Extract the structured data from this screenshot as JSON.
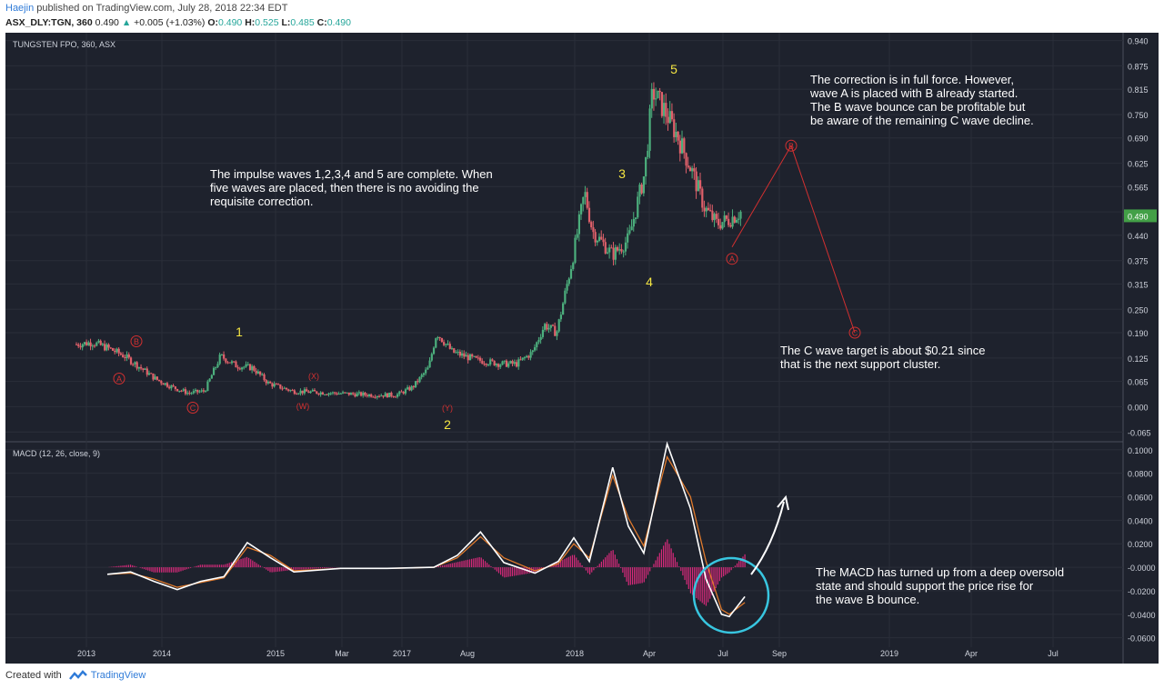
{
  "header": {
    "author": "Haejin",
    "published": "published on TradingView.com, July 28, 2018 22:34 EDT",
    "symbol": "ASX_DLY:TGN, 360",
    "price": "0.490",
    "change": "+0.005 (+1.03%)",
    "o_label": "O:",
    "o": "0.490",
    "h_label": "H:",
    "h": "0.525",
    "l_label": "L:",
    "l": "0.485",
    "c_label": "C:",
    "c": "0.490"
  },
  "footer": {
    "created_with": "Created with",
    "brand": "TradingView"
  },
  "colors": {
    "bg": "#1e222d",
    "up": "#4caf7d",
    "down": "#e0606a",
    "wave_red": "#d33030",
    "wave_yellow": "#f5e642",
    "macd_line": "#ffffff",
    "signal_line": "#e07a2c",
    "histogram": "#d82a7b",
    "circle": "#38c6e0",
    "price_tag": "#43a047"
  },
  "chart_data": [
    {
      "type": "candlestick",
      "title": "TUNGSTEN FPO, 360, ASX",
      "xlabel": "",
      "ylabel": "",
      "x_ticks": [
        "2013",
        "2014",
        "2015",
        "Mar",
        "2017",
        "Aug",
        "2018",
        "Apr",
        "Jul",
        "Sep",
        "2019",
        "Apr",
        "Jul"
      ],
      "y_ticks": [
        "0.940",
        "0.875",
        "0.815",
        "0.750",
        "0.690",
        "0.625",
        "0.565",
        "0.500",
        "0.440",
        "0.375",
        "0.315",
        "0.250",
        "0.190",
        "0.125",
        "0.065",
        "0.000",
        "-0.065"
      ],
      "ylim": [
        -0.09,
        0.96
      ],
      "last_price": "0.490",
      "price_path": [
        [
          0.0,
          0.16
        ],
        [
          0.02,
          0.165
        ],
        [
          0.04,
          0.15
        ],
        [
          0.06,
          0.13
        ],
        [
          0.08,
          0.1
        ],
        [
          0.1,
          0.07
        ],
        [
          0.12,
          0.05
        ],
        [
          0.14,
          0.035
        ],
        [
          0.16,
          0.04
        ],
        [
          0.18,
          0.13
        ],
        [
          0.2,
          0.105
        ],
        [
          0.22,
          0.1
        ],
        [
          0.24,
          0.06
        ],
        [
          0.27,
          0.04
        ],
        [
          0.32,
          0.035
        ],
        [
          0.37,
          0.03
        ],
        [
          0.4,
          0.03
        ],
        [
          0.42,
          0.05
        ],
        [
          0.44,
          0.1
        ],
        [
          0.45,
          0.19
        ],
        [
          0.47,
          0.14
        ],
        [
          0.5,
          0.12
        ],
        [
          0.53,
          0.11
        ],
        [
          0.55,
          0.11
        ],
        [
          0.57,
          0.14
        ],
        [
          0.585,
          0.21
        ],
        [
          0.6,
          0.19
        ],
        [
          0.62,
          0.38
        ],
        [
          0.635,
          0.55
        ],
        [
          0.645,
          0.45
        ],
        [
          0.67,
          0.39
        ],
        [
          0.69,
          0.43
        ],
        [
          0.71,
          0.6
        ],
        [
          0.72,
          0.81
        ],
        [
          0.735,
          0.76
        ],
        [
          0.75,
          0.7
        ],
        [
          0.77,
          0.6
        ],
        [
          0.785,
          0.51
        ],
        [
          0.8,
          0.47
        ],
        [
          0.815,
          0.48
        ],
        [
          0.83,
          0.5
        ]
      ],
      "projection": [
        {
          "label": "A",
          "date": "Jul 2018",
          "price": 0.41
        },
        {
          "label": "B",
          "date": "Sep 2018",
          "price": 0.67
        },
        {
          "label": "C",
          "date": "Dec 2018",
          "price": 0.19
        }
      ],
      "wave_labels_yellow": [
        "1",
        "2",
        "3",
        "4",
        "5"
      ],
      "wave_labels_red": [
        "A",
        "B",
        "C",
        "(W)",
        "(X)",
        "(Y)",
        "A",
        "B",
        "C"
      ],
      "annotations": [
        "The impulse waves 1,2,3,4 and 5 are complete. When five waves are placed, then there is no avoiding the requisite correction.",
        "The correction is in full force. However, wave A is placed with B already started. The B wave bounce can be profitable but be aware of the remaining C wave decline.",
        "The C wave target is about $0.21 since that is the next support cluster."
      ]
    },
    {
      "type": "line",
      "title": "MACD (12, 26, close, 9)",
      "y_ticks": [
        "0.1000",
        "0.0800",
        "0.0600",
        "0.0400",
        "0.0200",
        "-0.0000",
        "-0.0200",
        "-0.0400",
        "-0.0600"
      ],
      "ylim": [
        -0.068,
        0.106
      ],
      "series": [
        {
          "name": "MACD",
          "values": [
            [
              0.0,
              -0.006
            ],
            [
              0.03,
              -0.004
            ],
            [
              0.06,
              -0.012
            ],
            [
              0.09,
              -0.019
            ],
            [
              0.12,
              -0.012
            ],
            [
              0.15,
              -0.008
            ],
            [
              0.18,
              0.021
            ],
            [
              0.21,
              0.008
            ],
            [
              0.24,
              -0.004
            ],
            [
              0.3,
              -0.001
            ],
            [
              0.36,
              -0.001
            ],
            [
              0.42,
              0.0
            ],
            [
              0.45,
              0.01
            ],
            [
              0.48,
              0.03
            ],
            [
              0.51,
              0.004
            ],
            [
              0.55,
              -0.005
            ],
            [
              0.58,
              0.005
            ],
            [
              0.6,
              0.025
            ],
            [
              0.62,
              0.005
            ],
            [
              0.65,
              0.085
            ],
            [
              0.67,
              0.035
            ],
            [
              0.69,
              0.012
            ],
            [
              0.72,
              0.105
            ],
            [
              0.75,
              0.05
            ],
            [
              0.77,
              -0.01
            ],
            [
              0.79,
              -0.04
            ],
            [
              0.8,
              -0.042
            ],
            [
              0.82,
              -0.025
            ]
          ]
        },
        {
          "name": "Signal",
          "values": [
            [
              0.0,
              -0.006
            ],
            [
              0.03,
              -0.005
            ],
            [
              0.06,
              -0.01
            ],
            [
              0.09,
              -0.017
            ],
            [
              0.12,
              -0.013
            ],
            [
              0.15,
              -0.009
            ],
            [
              0.18,
              0.017
            ],
            [
              0.21,
              0.01
            ],
            [
              0.24,
              -0.003
            ],
            [
              0.3,
              -0.001
            ],
            [
              0.36,
              -0.001
            ],
            [
              0.42,
              0.0
            ],
            [
              0.45,
              0.008
            ],
            [
              0.48,
              0.026
            ],
            [
              0.51,
              0.008
            ],
            [
              0.55,
              -0.003
            ],
            [
              0.58,
              0.003
            ],
            [
              0.6,
              0.02
            ],
            [
              0.62,
              0.008
            ],
            [
              0.65,
              0.078
            ],
            [
              0.67,
              0.042
            ],
            [
              0.69,
              0.018
            ],
            [
              0.72,
              0.094
            ],
            [
              0.75,
              0.06
            ],
            [
              0.77,
              0.005
            ],
            [
              0.79,
              -0.036
            ],
            [
              0.8,
              -0.04
            ],
            [
              0.82,
              -0.03
            ]
          ]
        }
      ],
      "annotation": "The MACD has turned up from a deep oversold state and should support the price rise for the wave B bounce."
    }
  ]
}
